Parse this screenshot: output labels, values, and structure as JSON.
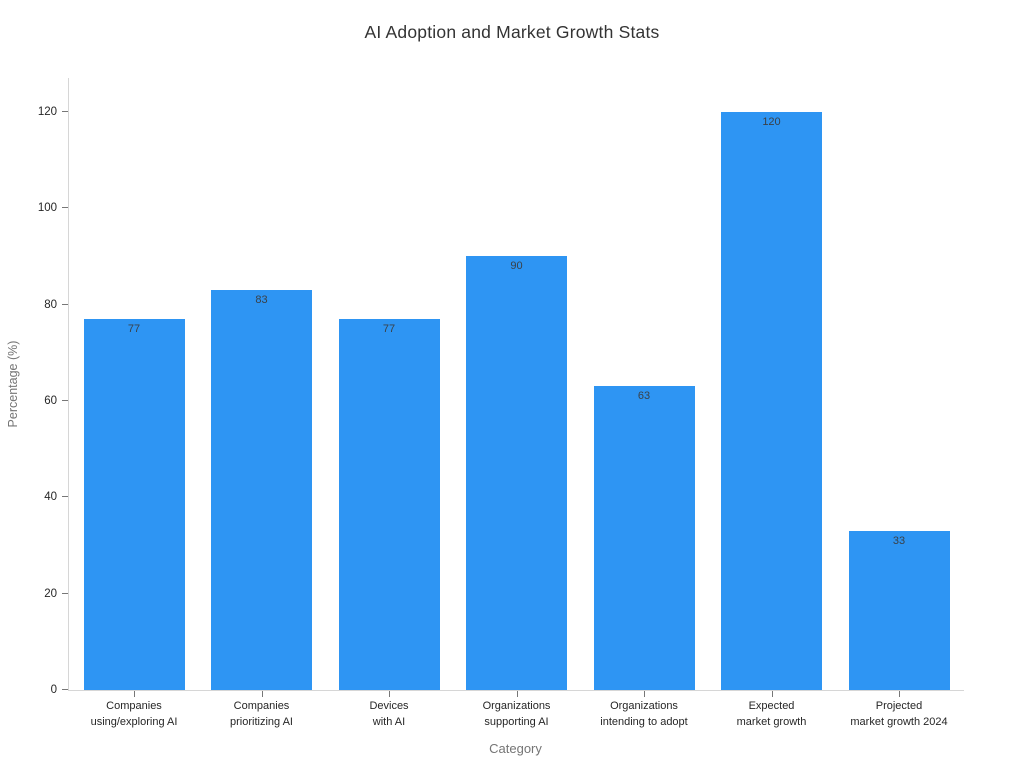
{
  "chart_data": {
    "type": "bar",
    "title": "AI Adoption and Market Growth Stats",
    "xlabel": "Category",
    "ylabel": "Percentage (%)",
    "categories": [
      "Companies\nusing/exploring AI",
      "Companies\nprioritizing AI",
      "Devices\nwith AI",
      "Organizations\nsupporting AI",
      "Organizations\nintending to adopt",
      "Expected\nmarket growth",
      "Projected\nmarket growth 2024"
    ],
    "values": [
      77,
      83,
      77,
      90,
      63,
      120,
      33
    ],
    "yticks": [
      0,
      20,
      40,
      60,
      80,
      100,
      120
    ],
    "ylim": [
      0,
      127
    ],
    "grid": false,
    "legend": "none",
    "colors": {
      "bar": "#2e95f3",
      "value_label": "#3a4148",
      "title": "#333333",
      "tick_label": "#262626",
      "axis_label": "#757575",
      "spine": "#d6d6d6",
      "tick_mark": "#777777",
      "background": "#ffffff"
    }
  }
}
